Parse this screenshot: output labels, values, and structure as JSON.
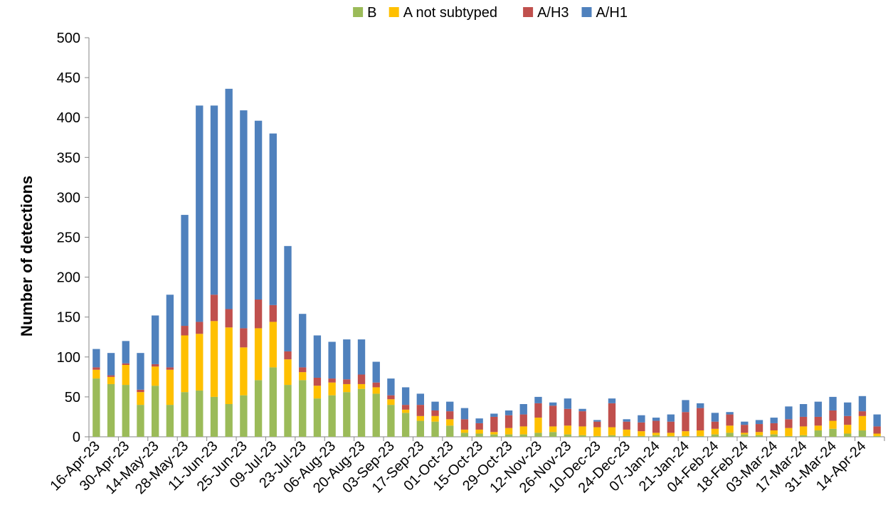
{
  "chart_data": {
    "type": "bar",
    "stacked": true,
    "ylabel": "Number of detections",
    "xlabel": "",
    "ylim": [
      0,
      500
    ],
    "yticks": [
      0,
      50,
      100,
      150,
      200,
      250,
      300,
      350,
      400,
      450,
      500
    ],
    "grid": false,
    "legend_position": "top",
    "categories": [
      "16-Apr-23",
      "23-Apr-23",
      "30-Apr-23",
      "07-May-23",
      "14-May-23",
      "21-May-23",
      "28-May-23",
      "04-Jun-23",
      "11-Jun-23",
      "18-Jun-23",
      "25-Jun-23",
      "02-Jul-23",
      "09-Jul-23",
      "16-Jul-23",
      "23-Jul-23",
      "30-Jul-23",
      "06-Aug-23",
      "13-Aug-23",
      "20-Aug-23",
      "27-Aug-23",
      "03-Sep-23",
      "10-Sep-23",
      "17-Sep-23",
      "24-Sep-23",
      "01-Oct-23",
      "08-Oct-23",
      "15-Oct-23",
      "22-Oct-23",
      "29-Oct-23",
      "05-Nov-23",
      "12-Nov-23",
      "19-Nov-23",
      "26-Nov-23",
      "03-Dec-23",
      "10-Dec-23",
      "17-Dec-23",
      "24-Dec-23",
      "31-Dec-23",
      "07-Jan-24",
      "14-Jan-24",
      "21-Jan-24",
      "28-Jan-24",
      "04-Feb-24",
      "11-Feb-24",
      "18-Feb-24",
      "25-Feb-24",
      "03-Mar-24",
      "10-Mar-24",
      "17-Mar-24",
      "24-Mar-24",
      "31-Mar-24",
      "07-Apr-24",
      "14-Apr-24",
      "21-Apr-24"
    ],
    "tick_labels": [
      "16-Apr-23",
      "30-Apr-23",
      "14-May-23",
      "28-May-23",
      "11-Jun-23",
      "25-Jun-23",
      "09-Jul-23",
      "23-Jul-23",
      "06-Aug-23",
      "20-Aug-23",
      "03-Sep-23",
      "17-Sep-23",
      "01-Oct-23",
      "15-Oct-23",
      "29-Oct-23",
      "12-Nov-23",
      "26-Nov-23",
      "10-Dec-23",
      "24-Dec-23",
      "07-Jan-24",
      "21-Jan-24",
      "04-Feb-24",
      "18-Feb-24",
      "03-Mar-24",
      "17-Mar-24",
      "31-Mar-24",
      "14-Apr-24"
    ],
    "series": [
      {
        "name": "B",
        "color": "#9BBB59",
        "values": [
          73,
          66,
          65,
          40,
          64,
          40,
          56,
          58,
          50,
          41,
          52,
          71,
          87,
          65,
          71,
          48,
          52,
          56,
          60,
          54,
          40,
          30,
          20,
          19,
          14,
          5,
          4,
          3,
          3,
          3,
          5,
          6,
          3,
          2,
          1,
          2,
          1,
          1,
          2,
          1,
          1,
          1,
          3,
          5,
          3,
          2,
          3,
          1,
          2,
          8,
          10,
          4,
          8,
          1
        ]
      },
      {
        "name": "A not subtyped",
        "color": "#FFC000",
        "values": [
          11,
          9,
          25,
          16,
          24,
          44,
          71,
          71,
          95,
          96,
          60,
          65,
          57,
          32,
          10,
          16,
          16,
          10,
          6,
          8,
          7,
          4,
          6,
          7,
          8,
          4,
          5,
          3,
          8,
          10,
          19,
          7,
          11,
          11,
          11,
          10,
          8,
          6,
          3,
          4,
          6,
          7,
          7,
          9,
          2,
          4,
          5,
          10,
          11,
          6,
          10,
          11,
          18,
          3
        ]
      },
      {
        "name": "A/H3",
        "color": "#C0504D",
        "values": [
          3,
          2,
          2,
          3,
          3,
          3,
          12,
          15,
          33,
          23,
          24,
          36,
          21,
          10,
          6,
          10,
          5,
          6,
          12,
          6,
          5,
          6,
          14,
          7,
          10,
          13,
          8,
          19,
          16,
          15,
          18,
          26,
          21,
          19,
          7,
          30,
          10,
          11,
          15,
          14,
          24,
          28,
          9,
          14,
          10,
          10,
          9,
          11,
          12,
          11,
          13,
          11,
          6,
          9
        ]
      },
      {
        "name": "A/H1",
        "color": "#4F81BD",
        "values": [
          23,
          28,
          28,
          46,
          61,
          91,
          139,
          271,
          237,
          276,
          273,
          224,
          215,
          132,
          67,
          53,
          46,
          50,
          44,
          26,
          21,
          22,
          14,
          11,
          12,
          14,
          6,
          4,
          6,
          13,
          8,
          4,
          13,
          3,
          2,
          6,
          3,
          9,
          4,
          9,
          15,
          6,
          11,
          3,
          4,
          5,
          7,
          16,
          16,
          19,
          17,
          17,
          19,
          15
        ]
      }
    ]
  }
}
